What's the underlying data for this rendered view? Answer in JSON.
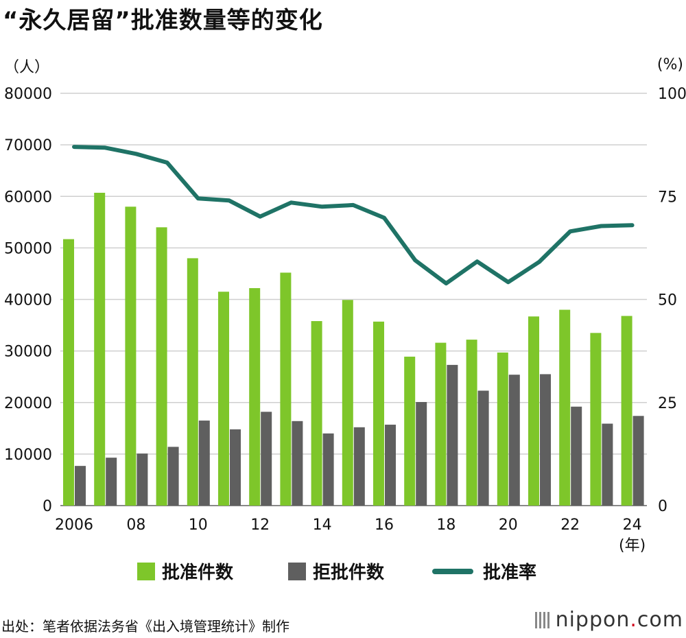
{
  "title": "“永久居留”批准数量等的变化",
  "unit_left": "（人）",
  "unit_right": "(%)",
  "year_unit": "(年)",
  "source": "出处：笔者依据法务省《出入境管理统计》制作",
  "logo": {
    "name": "nippon",
    "dot": ".",
    "suffix": "com"
  },
  "colors": {
    "approved": "#7ec62a",
    "rejected": "#5f5f5f",
    "rate": "#1f7366",
    "grid": "#cfcfcf"
  },
  "legend": [
    {
      "label": "批准件数",
      "kind": "bar",
      "color": "#7ec62a"
    },
    {
      "label": "拒批件数",
      "kind": "bar",
      "color": "#5f5f5f"
    },
    {
      "label": "批准率",
      "kind": "line",
      "color": "#1f7366"
    }
  ],
  "chart_data": {
    "type": "bar",
    "categories": [
      "2006",
      "2007",
      "2008",
      "2009",
      "2010",
      "2011",
      "2012",
      "2013",
      "2014",
      "2015",
      "2016",
      "2017",
      "2018",
      "2019",
      "2020",
      "2021",
      "2022",
      "2023",
      "2024"
    ],
    "x_tick_labels": [
      "2006",
      "",
      "08",
      "",
      "10",
      "",
      "12",
      "",
      "14",
      "",
      "16",
      "",
      "18",
      "",
      "20",
      "",
      "22",
      "",
      "24"
    ],
    "series": [
      {
        "name": "批准件数",
        "type": "bar",
        "axis": "left",
        "values": [
          51700,
          60700,
          58000,
          54000,
          48000,
          41500,
          42200,
          45200,
          35800,
          39900,
          35700,
          28900,
          31600,
          32200,
          29700,
          36700,
          38000,
          33500,
          36800
        ]
      },
      {
        "name": "拒批件数",
        "type": "bar",
        "axis": "left",
        "values": [
          7700,
          9300,
          10100,
          11400,
          16500,
          14800,
          18200,
          16400,
          14000,
          15200,
          15700,
          20100,
          27300,
          22300,
          25400,
          25500,
          19200,
          15900,
          17400
        ]
      },
      {
        "name": "批准率",
        "type": "line",
        "axis": "right",
        "values": [
          87.0,
          86.8,
          85.3,
          83.2,
          74.5,
          74.0,
          70.1,
          73.5,
          72.5,
          72.9,
          69.8,
          59.5,
          53.9,
          59.2,
          54.2,
          59.1,
          66.5,
          67.8,
          68.0
        ]
      }
    ],
    "y_left": {
      "min": 0,
      "max": 80000,
      "ticks": [
        0,
        10000,
        20000,
        30000,
        40000,
        50000,
        60000,
        70000,
        80000
      ]
    },
    "y_right": {
      "min": 0,
      "max": 100,
      "ticks": [
        0,
        25,
        50,
        75,
        100
      ]
    },
    "grid": true,
    "legend_position": "bottom"
  }
}
